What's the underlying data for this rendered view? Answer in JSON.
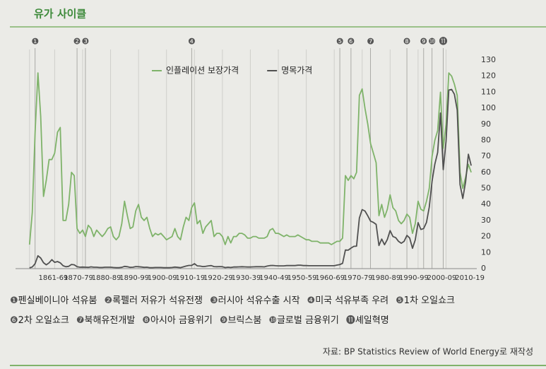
{
  "chart_data": {
    "type": "line",
    "title": "유가 사이클",
    "source": "자료: BP Statistics Review of World Energy로 재작성",
    "x": [
      1861,
      1862,
      1863,
      1864,
      1865,
      1866,
      1867,
      1868,
      1869,
      1870,
      1871,
      1872,
      1873,
      1874,
      1875,
      1876,
      1877,
      1878,
      1879,
      1880,
      1881,
      1882,
      1883,
      1884,
      1885,
      1886,
      1887,
      1888,
      1889,
      1890,
      1891,
      1892,
      1893,
      1894,
      1895,
      1896,
      1897,
      1898,
      1899,
      1900,
      1901,
      1902,
      1903,
      1904,
      1905,
      1906,
      1907,
      1908,
      1909,
      1910,
      1911,
      1912,
      1913,
      1914,
      1915,
      1916,
      1917,
      1918,
      1919,
      1920,
      1921,
      1922,
      1923,
      1924,
      1925,
      1926,
      1927,
      1928,
      1929,
      1930,
      1931,
      1932,
      1933,
      1934,
      1935,
      1936,
      1937,
      1938,
      1939,
      1940,
      1941,
      1942,
      1943,
      1944,
      1945,
      1946,
      1947,
      1948,
      1949,
      1950,
      1951,
      1952,
      1953,
      1954,
      1955,
      1956,
      1957,
      1958,
      1959,
      1960,
      1961,
      1962,
      1963,
      1964,
      1965,
      1966,
      1967,
      1968,
      1969,
      1970,
      1971,
      1972,
      1973,
      1974,
      1975,
      1976,
      1977,
      1978,
      1979,
      1980,
      1981,
      1982,
      1983,
      1984,
      1985,
      1986,
      1987,
      1988,
      1989,
      1990,
      1991,
      1992,
      1993,
      1994,
      1995,
      1996,
      1997,
      1998,
      1999,
      2000,
      2001,
      2002,
      2003,
      2004,
      2005,
      2006,
      2007,
      2008,
      2009,
      2010,
      2011,
      2012,
      2013,
      2014,
      2015,
      2016,
      2017,
      2018,
      2019
    ],
    "series": [
      {
        "name": "인플레이션 보장가격",
        "color": "#7fb36a",
        "values": [
          15,
          35,
          85,
          122,
          95,
          45,
          55,
          68,
          68,
          72,
          85,
          88,
          30,
          30,
          40,
          60,
          58,
          25,
          22,
          24,
          20,
          27,
          25,
          20,
          24,
          22,
          20,
          22,
          25,
          26,
          20,
          18,
          20,
          28,
          42,
          33,
          25,
          26,
          36,
          40,
          32,
          30,
          32,
          25,
          20,
          22,
          21,
          22,
          20,
          18,
          19,
          20,
          25,
          20,
          18,
          26,
          32,
          30,
          38,
          41,
          28,
          30,
          22,
          26,
          28,
          30,
          20,
          22,
          22,
          20,
          15,
          20,
          16,
          20,
          20,
          22,
          22,
          21,
          19,
          19,
          20,
          20,
          19,
          19,
          19,
          20,
          24,
          25,
          22,
          22,
          21,
          20,
          21,
          20,
          20,
          20,
          21,
          20,
          19,
          18,
          18,
          17,
          17,
          17,
          16,
          16,
          16,
          16,
          15,
          16,
          17,
          17,
          19,
          58,
          55,
          58,
          56,
          60,
          108,
          112,
          100,
          90,
          78,
          72,
          66,
          33,
          40,
          32,
          37,
          46,
          38,
          36,
          30,
          28,
          30,
          34,
          32,
          22,
          28,
          42,
          37,
          36,
          42,
          50,
          70,
          80,
          86,
          110,
          75,
          90,
          122,
          120,
          115,
          108,
          60,
          50,
          57,
          65,
          60
        ]
      },
      {
        "name": "명목가격",
        "color": "#505050",
        "values": [
          0.5,
          1,
          3.1,
          8,
          6.6,
          3.7,
          2.4,
          3.6,
          5.6,
          3.9,
          4.4,
          3.6,
          1.8,
          1.2,
          1.4,
          2.6,
          2.4,
          1.2,
          0.9,
          0.95,
          0.9,
          0.8,
          1.1,
          0.9,
          0.9,
          0.7,
          0.7,
          0.9,
          0.9,
          0.9,
          0.7,
          0.6,
          0.6,
          0.8,
          1.4,
          1.2,
          0.8,
          0.9,
          1.3,
          1.2,
          1,
          0.8,
          0.9,
          0.6,
          0.6,
          0.7,
          0.7,
          0.7,
          0.6,
          0.6,
          0.6,
          0.7,
          0.95,
          0.8,
          0.6,
          1.1,
          1.6,
          2,
          2,
          3.1,
          1.7,
          1.6,
          1.3,
          1.4,
          1.7,
          1.9,
          1.3,
          1.2,
          1.3,
          1.2,
          0.65,
          0.9,
          0.7,
          1,
          1,
          1.1,
          1.2,
          1.1,
          1,
          1,
          1.1,
          1.2,
          1.2,
          1.2,
          1.1,
          1.6,
          1.9,
          2,
          1.8,
          1.7,
          1.7,
          1.7,
          1.9,
          1.9,
          1.9,
          1.9,
          2.1,
          2.1,
          1.9,
          1.9,
          1.8,
          1.8,
          1.8,
          1.8,
          1.8,
          1.8,
          1.8,
          1.8,
          1.8,
          1.8,
          2.2,
          2.5,
          3.3,
          11.6,
          11.5,
          12.8,
          13.9,
          14,
          31.6,
          36.8,
          35.9,
          32.9,
          29.6,
          28.8,
          27.6,
          14.4,
          18.4,
          14.9,
          18.2,
          23.7,
          20,
          19.3,
          17,
          15.8,
          17,
          20.7,
          19.1,
          12.7,
          17.9,
          28.7,
          24.4,
          25,
          28.8,
          38.3,
          54.5,
          65.1,
          72.4,
          97,
          61.7,
          79.5,
          111.3,
          111.7,
          108.7,
          98.9,
          52.4,
          43.7,
          54.2,
          71.3,
          64.2
        ]
      }
    ],
    "xlim": [
      1856,
      2021
    ],
    "xticks": [
      {
        "value": 1861,
        "label": "1861-69"
      },
      {
        "value": 1870,
        "label": "1870-79"
      },
      {
        "value": 1880,
        "label": "1880-89"
      },
      {
        "value": 1890,
        "label": "1890-99"
      },
      {
        "value": 1900,
        "label": "1900-09"
      },
      {
        "value": 1910,
        "label": "1910-19"
      },
      {
        "value": 1920,
        "label": "1920-29"
      },
      {
        "value": 1930,
        "label": "1930-39"
      },
      {
        "value": 1940,
        "label": "1940-49"
      },
      {
        "value": 1950,
        "label": "1950-59"
      },
      {
        "value": 1960,
        "label": "1960-69"
      },
      {
        "value": 1970,
        "label": "1970-79"
      },
      {
        "value": 1980,
        "label": "1980-89"
      },
      {
        "value": 1990,
        "label": "1990-99"
      },
      {
        "value": 2000,
        "label": "2000-09"
      },
      {
        "value": 2010,
        "label": "2010-19"
      }
    ],
    "ylim": [
      0,
      130
    ],
    "yticks": [
      0,
      10,
      20,
      30,
      40,
      50,
      60,
      70,
      80,
      90,
      100,
      110,
      120,
      130
    ],
    "grid": "x",
    "events": [
      {
        "marker": "❶",
        "label": "펜실베이니아 석유붐",
        "year": 1863
      },
      {
        "marker": "❷",
        "label": "록펠러 저유가 석유전쟁",
        "year": 1878
      },
      {
        "marker": "❸",
        "label": "러시아 석유수출 시작",
        "year": 1881
      },
      {
        "marker": "❹",
        "label": "미국 석유부족 우려",
        "year": 1919
      },
      {
        "marker": "❺",
        "label": "1차 오일쇼크",
        "year": 1972
      },
      {
        "marker": "❻",
        "label": "2차 오일쇼크",
        "year": 1976
      },
      {
        "marker": "❼",
        "label": "북해유전개발",
        "year": 1983
      },
      {
        "marker": "❽",
        "label": "아시아 금융위기",
        "year": 1996
      },
      {
        "marker": "❾",
        "label": "브릭스붐",
        "year": 2002
      },
      {
        "marker": "❿",
        "label": "글로벌 금융위기",
        "year": 2005
      },
      {
        "marker": "⓫",
        "label": "셰일혁명",
        "year": 2009
      }
    ]
  }
}
